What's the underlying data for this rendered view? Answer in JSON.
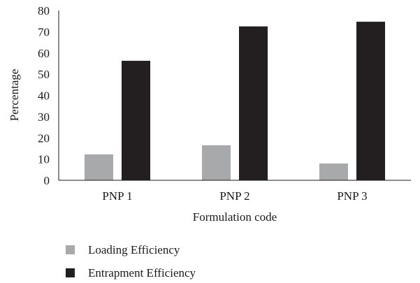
{
  "chart_data": {
    "type": "bar",
    "title": "",
    "xlabel": "Formulation code",
    "ylabel": "Percentage",
    "categories": [
      "PNP 1",
      "PNP 2",
      "PNP 3"
    ],
    "yticks": [
      "0",
      "10",
      "20",
      "30",
      "40",
      "50",
      "60",
      "70",
      "80"
    ],
    "ylim": [
      0,
      80
    ],
    "grid": false,
    "legend_position": "bottom-left",
    "series": [
      {
        "name": "Loading Efficiency",
        "color": "#a7a9ab",
        "values": [
          12.2,
          16.5,
          7.9
        ]
      },
      {
        "name": "Entrapment Efficiency",
        "color": "#231f20",
        "values": [
          56.3,
          72.5,
          74.7
        ]
      }
    ]
  }
}
